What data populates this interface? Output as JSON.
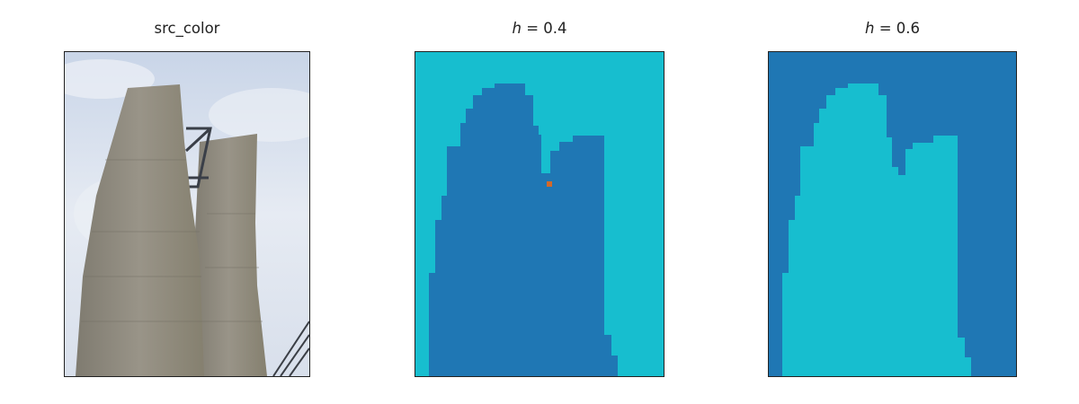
{
  "panels": [
    {
      "title": "src_color"
    },
    {
      "title_var": "h",
      "title_eq": " = 0.4"
    },
    {
      "title_var": "h",
      "title_eq": " = 0.6"
    }
  ],
  "colors": {
    "sky": "#dfe5f0",
    "building": "#8a8579",
    "dark_blue": "#1f77b4",
    "cyan": "#17becf",
    "marker": "#d2692a"
  }
}
